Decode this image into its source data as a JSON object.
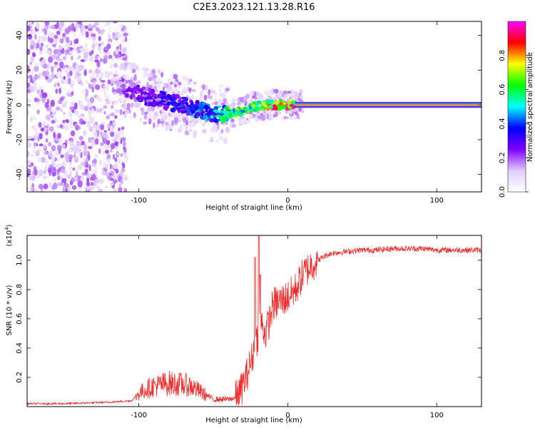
{
  "figure": {
    "title": "C2E3.2023.121.13.28.R16"
  },
  "chart_data": [
    {
      "type": "heatmap",
      "title": "C2E3.2023.121.13.28.R16",
      "xlabel": "Height of straight line (km)",
      "ylabel": "Frequency (Hz)",
      "xlim": [
        -175,
        130
      ],
      "ylim": [
        -50,
        48
      ],
      "xticks": [
        -100,
        0,
        100
      ],
      "yticks": [
        -40,
        -20,
        0,
        20,
        40
      ],
      "colorbar": {
        "label": "Normalized spectral amplitude",
        "range": [
          0,
          1
        ],
        "ticks": [
          0.0,
          0.2,
          0.4,
          0.6,
          0.8
        ],
        "colors": [
          "#ffffff",
          "#e0ccff",
          "#7f00ff",
          "#0000ff",
          "#00ffff",
          "#00ff00",
          "#ffff00",
          "#ff0000",
          "#ff00ff"
        ]
      },
      "ridge": {
        "x": [
          -115,
          -100,
          -90,
          -80,
          -70,
          -60,
          -50,
          -40,
          -30,
          -25,
          -20,
          -15,
          -10,
          -5,
          0,
          50,
          100,
          130
        ],
        "frequency": [
          12,
          6,
          4,
          2,
          0,
          -3,
          -5,
          -5,
          -4,
          -1,
          -1,
          0,
          0,
          0,
          0,
          0,
          0,
          0
        ],
        "amplitude": [
          0.2,
          0.3,
          0.3,
          0.4,
          0.4,
          0.45,
          0.5,
          0.7,
          0.75,
          0.7,
          0.8,
          0.85,
          0.9,
          0.9,
          0.95,
          1.0,
          1.0,
          1.0
        ]
      },
      "noise_region_x": [
        -175,
        -108
      ]
    },
    {
      "type": "line",
      "xlabel": "Height of straight line (km)",
      "ylabel": "SNR (10 * v/v)",
      "yscale_label": "(x10",
      "yscale_exp": "4",
      "yscale_close": ")",
      "xlim": [
        -175,
        130
      ],
      "ylim": [
        0,
        1.17
      ],
      "xticks": [
        -100,
        0,
        100
      ],
      "yticks": [
        0.2,
        0.4,
        0.6,
        0.8,
        1.0
      ],
      "color": "#ee2a2a",
      "series": [
        {
          "x": [
            -175,
            -150,
            -120,
            -105,
            -100,
            -95,
            -90,
            -80,
            -70,
            -65,
            -55,
            -50,
            -45,
            -40,
            -35,
            -32,
            -28,
            -25,
            -22,
            -20,
            -19,
            -17,
            -15,
            -12,
            -10,
            -5,
            0,
            5,
            10,
            15,
            20,
            25,
            30,
            40,
            50,
            60,
            70,
            80,
            90,
            100,
            110,
            120,
            130
          ],
          "values": [
            0.02,
            0.02,
            0.03,
            0.04,
            0.09,
            0.12,
            0.14,
            0.16,
            0.15,
            0.14,
            0.08,
            0.05,
            0.05,
            0.05,
            0.06,
            0.1,
            0.2,
            0.3,
            0.4,
            0.5,
            0.6,
            0.55,
            0.5,
            0.6,
            0.7,
            0.72,
            0.75,
            0.8,
            0.9,
            0.96,
            1.0,
            1.03,
            1.05,
            1.06,
            1.07,
            1.07,
            1.08,
            1.08,
            1.08,
            1.07,
            1.07,
            1.07,
            1.07
          ]
        }
      ],
      "spikes": [
        {
          "x": -22,
          "value": 1.02
        },
        {
          "x": -19.5,
          "value": 1.17
        },
        {
          "x": -18.5,
          "value": 0.9
        }
      ]
    }
  ]
}
